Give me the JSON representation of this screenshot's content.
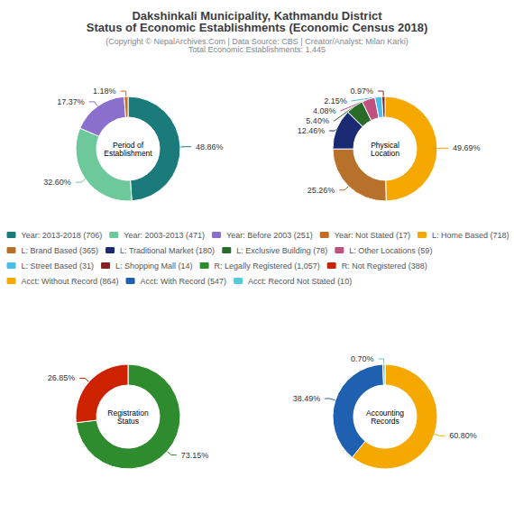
{
  "title": "Dakshinkali Municipality, Kathmandu District\nStatus of Economic Establishments (Economic Census 2018)",
  "subtitle": "(Copyright © NepalArchives.Com | Data Source: CBS | Creator/Analyst: Milan Karki)\nTotal Economic Establishments: 1,445",
  "legend": "center",
  "chart_data": [
    {
      "type": "pie",
      "title": "Period of\nEstablishment",
      "categories": [
        "Year: 2013-2018 (706)",
        "Year: 2003-2013 (471)",
        "Year: Before 2003 (251)",
        "Year: Not Stated (17)"
      ],
      "values": [
        48.86,
        32.6,
        17.37,
        1.18
      ],
      "value_labels": [
        "48.86%",
        "32.60%",
        "17.37%",
        "1.18%"
      ],
      "colors": [
        "#1B7A7A",
        "#6DC99A",
        "#8A6FCC",
        "#C86A22"
      ],
      "data_labels": true
    },
    {
      "type": "pie",
      "title": "Physical\nLocation",
      "categories": [
        "L: Home Based (718)",
        "L: Brand Based (365)",
        "L: Traditional Market (180)",
        "L: Exclusive Building (78)",
        "L: Other Locations (59)",
        "L: Street Based (31)",
        "L: Shopping Mall (14)"
      ],
      "values": [
        49.69,
        25.26,
        12.46,
        5.4,
        4.08,
        2.15,
        0.97
      ],
      "value_labels": [
        "49.69%",
        "25.26%",
        "12.46%",
        "5.40%",
        "4.08%",
        "2.15%",
        "0.97%"
      ],
      "colors": [
        "#F5A800",
        "#B8712A",
        "#1B2A72",
        "#2A6B2A",
        "#C05080",
        "#4BBDE8",
        "#8B2020"
      ],
      "data_labels": true
    },
    {
      "type": "pie",
      "title": "Registration\nStatus",
      "categories": [
        "R: Legally Registered (1,057)",
        "R: Not Registered (388)"
      ],
      "values": [
        73.15,
        26.85
      ],
      "value_labels": [
        "73.15%",
        "26.85%"
      ],
      "colors": [
        "#2E8B2E",
        "#CC2200"
      ],
      "data_labels": true
    },
    {
      "type": "pie",
      "title": "Accounting\nRecords",
      "categories": [
        "Acct: Without Record (864)",
        "Acct: With Record (547)",
        "Acct: Record Not Stated (10)"
      ],
      "values": [
        60.8,
        38.49,
        0.7
      ],
      "value_labels": [
        "60.80%",
        "38.49%",
        "0.70%"
      ],
      "colors": [
        "#F5A800",
        "#2060B0",
        "#55CCDD"
      ],
      "data_labels": true
    }
  ]
}
